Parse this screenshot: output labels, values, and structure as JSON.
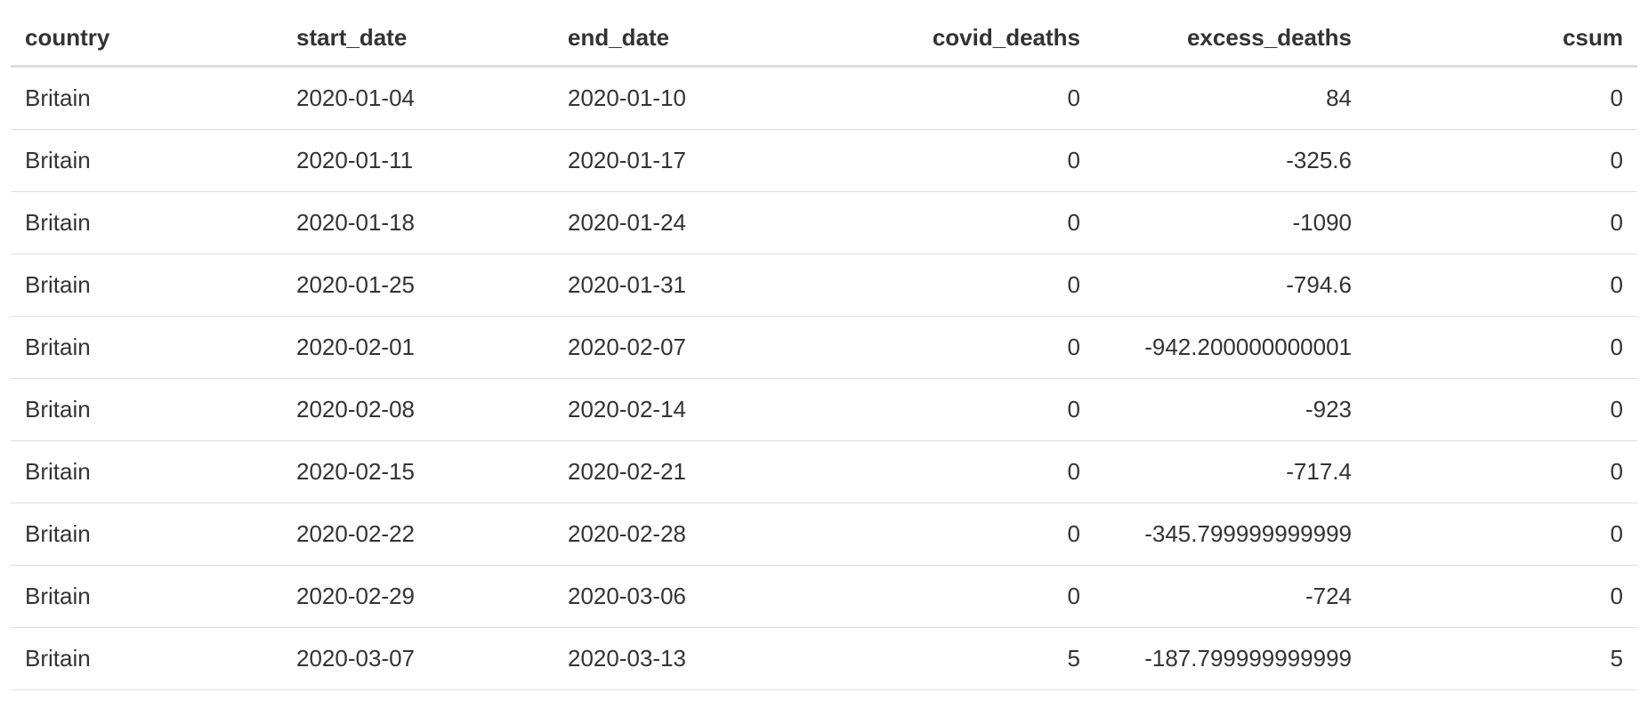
{
  "table": {
    "columns": [
      {
        "key": "country",
        "label": "country",
        "align": "left"
      },
      {
        "key": "start_date",
        "label": "start_date",
        "align": "left"
      },
      {
        "key": "end_date",
        "label": "end_date",
        "align": "left"
      },
      {
        "key": "covid_deaths",
        "label": "covid_deaths",
        "align": "right"
      },
      {
        "key": "excess_deaths",
        "label": "excess_deaths",
        "align": "right"
      },
      {
        "key": "csum",
        "label": "csum",
        "align": "right"
      }
    ],
    "rows": [
      {
        "country": "Britain",
        "start_date": "2020-01-04",
        "end_date": "2020-01-10",
        "covid_deaths": "0",
        "excess_deaths": "84",
        "csum": "0"
      },
      {
        "country": "Britain",
        "start_date": "2020-01-11",
        "end_date": "2020-01-17",
        "covid_deaths": "0",
        "excess_deaths": "-325.6",
        "csum": "0"
      },
      {
        "country": "Britain",
        "start_date": "2020-01-18",
        "end_date": "2020-01-24",
        "covid_deaths": "0",
        "excess_deaths": "-1090",
        "csum": "0"
      },
      {
        "country": "Britain",
        "start_date": "2020-01-25",
        "end_date": "2020-01-31",
        "covid_deaths": "0",
        "excess_deaths": "-794.6",
        "csum": "0"
      },
      {
        "country": "Britain",
        "start_date": "2020-02-01",
        "end_date": "2020-02-07",
        "covid_deaths": "0",
        "excess_deaths": "-942.200000000001",
        "csum": "0"
      },
      {
        "country": "Britain",
        "start_date": "2020-02-08",
        "end_date": "2020-02-14",
        "covid_deaths": "0",
        "excess_deaths": "-923",
        "csum": "0"
      },
      {
        "country": "Britain",
        "start_date": "2020-02-15",
        "end_date": "2020-02-21",
        "covid_deaths": "0",
        "excess_deaths": "-717.4",
        "csum": "0"
      },
      {
        "country": "Britain",
        "start_date": "2020-02-22",
        "end_date": "2020-02-28",
        "covid_deaths": "0",
        "excess_deaths": "-345.799999999999",
        "csum": "0"
      },
      {
        "country": "Britain",
        "start_date": "2020-02-29",
        "end_date": "2020-03-06",
        "covid_deaths": "0",
        "excess_deaths": "-724",
        "csum": "0"
      },
      {
        "country": "Britain",
        "start_date": "2020-03-07",
        "end_date": "2020-03-13",
        "covid_deaths": "5",
        "excess_deaths": "-187.799999999999",
        "csum": "5"
      }
    ]
  }
}
